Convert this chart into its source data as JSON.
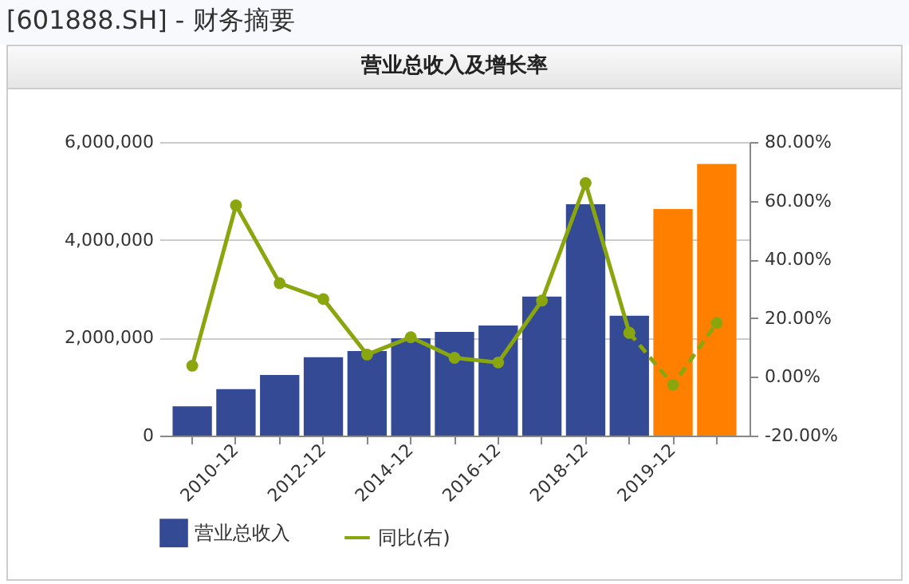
{
  "chart_data": {
    "type": "bar",
    "title": "[601888.SH] - 财务摘要",
    "subtitle": "营业总收入及增长率",
    "categories": [
      null,
      "2010-12",
      null,
      "2012-12",
      null,
      "2014-12",
      null,
      "2016-12",
      null,
      "2018-12",
      null,
      "2019-12",
      null
    ],
    "series": [
      {
        "name": "营业总收入",
        "color": "#344a94",
        "colors": [
          "#344a94",
          "#344a94",
          "#344a94",
          "#344a94",
          "#344a94",
          "#344a94",
          "#344a94",
          "#344a94",
          "#344a94",
          "#344a94",
          "#344a94",
          "#ff7f00",
          "#ff7f00"
        ],
        "values": [
          600000,
          950000,
          1240000,
          1600000,
          1730000,
          1990000,
          2120000,
          2250000,
          2840000,
          4730000,
          2450000,
          4630000,
          5550000
        ]
      },
      {
        "name": "同比(右)",
        "type": "line",
        "axis": "y2",
        "color": "#8aa60f",
        "line_style": "solid",
        "values": [
          3.8,
          58.4,
          31.9,
          26.5,
          7.6,
          13.5,
          6.5,
          4.9,
          26,
          66,
          15,
          null,
          null
        ]
      },
      {
        "type": "line",
        "axis": "y2",
        "color": "#8aa60f",
        "line_style": "dashed",
        "values": [
          null,
          null,
          null,
          null,
          null,
          null,
          null,
          null,
          null,
          null,
          15,
          -2.7,
          18.4
        ]
      }
    ],
    "ylim": [
      0,
      6000000
    ],
    "yticks": [
      0,
      {
        "value": 2000000,
        "label": "2,000,000"
      },
      {
        "value": 4000000,
        "label": "4,000,000"
      },
      {
        "value": 6000000,
        "label": "6,000,000"
      }
    ],
    "y2lim": [
      -20,
      80
    ],
    "y2ticks": [
      {
        "value": -20,
        "label": "-20.00%"
      },
      {
        "value": 0,
        "label": "0.00%"
      },
      {
        "value": 20,
        "label": "20.00%"
      },
      {
        "value": 40,
        "label": "40.00%"
      },
      {
        "value": 60,
        "label": "60.00%"
      },
      {
        "value": 80,
        "label": "80.00%"
      }
    ],
    "grid": "y",
    "legend": "bottom",
    "marker": "circle"
  }
}
